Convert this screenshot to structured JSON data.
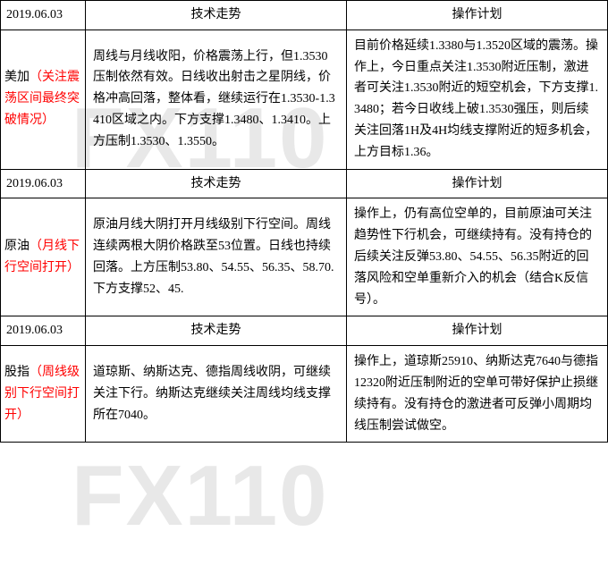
{
  "watermark": "FX110",
  "table": {
    "border_color": "#000000",
    "background_color": "#ffffff",
    "sections": [
      {
        "date": "2019.06.03",
        "col2_header": "技术走势",
        "col3_header": "操作计划",
        "label_main": "美加",
        "label_note": "（关注震荡区间最终突破情况）",
        "trend": "周线与月线收阳，价格震荡上行，但1.3530压制依然有效。日线收出射击之星阴线，价格冲高回落，整体看，继续运行在1.3530-1.3410区域之内。下方支撑1.3480、1.3410。上方压制1.3530、1.3550。",
        "plan": "目前价格延续1.3380与1.3520区域的震荡。操作上，今日重点关注1.3530附近压制，激进者可关注1.3530附近的短空机会，下方支撑1.3480；若今日收线上破1.3530强压，则后续关注回落1H及4H均线支撑附近的短多机会，上方目标1.36。"
      },
      {
        "date": "2019.06.03",
        "col2_header": "技术走势",
        "col3_header": "操作计划",
        "label_main": "原油",
        "label_note": "（月线下行空间打开）",
        "trend": "原油月线大阴打开月线级别下行空间。周线连续两根大阴价格跌至53位置。日线也持续回落。上方压制53.80、54.55、56.35、58.70.下方支撑52、45.",
        "plan": "操作上，仍有高位空单的，目前原油可关注趋势性下行机会，可继续持有。没有持仓的后续关注反弹53.80、54.55、56.35附近的回落风险和空单重新介入的机会（结合K反信号）。"
      },
      {
        "date": "2019.06.03",
        "col2_header": "技术走势",
        "col3_header": "操作计划",
        "label_main": "股指",
        "label_note": "（周线级别下行空间打开）",
        "trend": "道琼斯、纳斯达克、德指周线收阴，可继续关注下行。纳斯达克继续关注周线均线支撑所在7040。",
        "plan": "操作上，道琼斯25910、纳斯达克7640与德指12320附近压制附近的空单可带好保护止损继续持有。没有持仓的激进者可反弹小周期均线压制尝试做空。"
      }
    ]
  }
}
